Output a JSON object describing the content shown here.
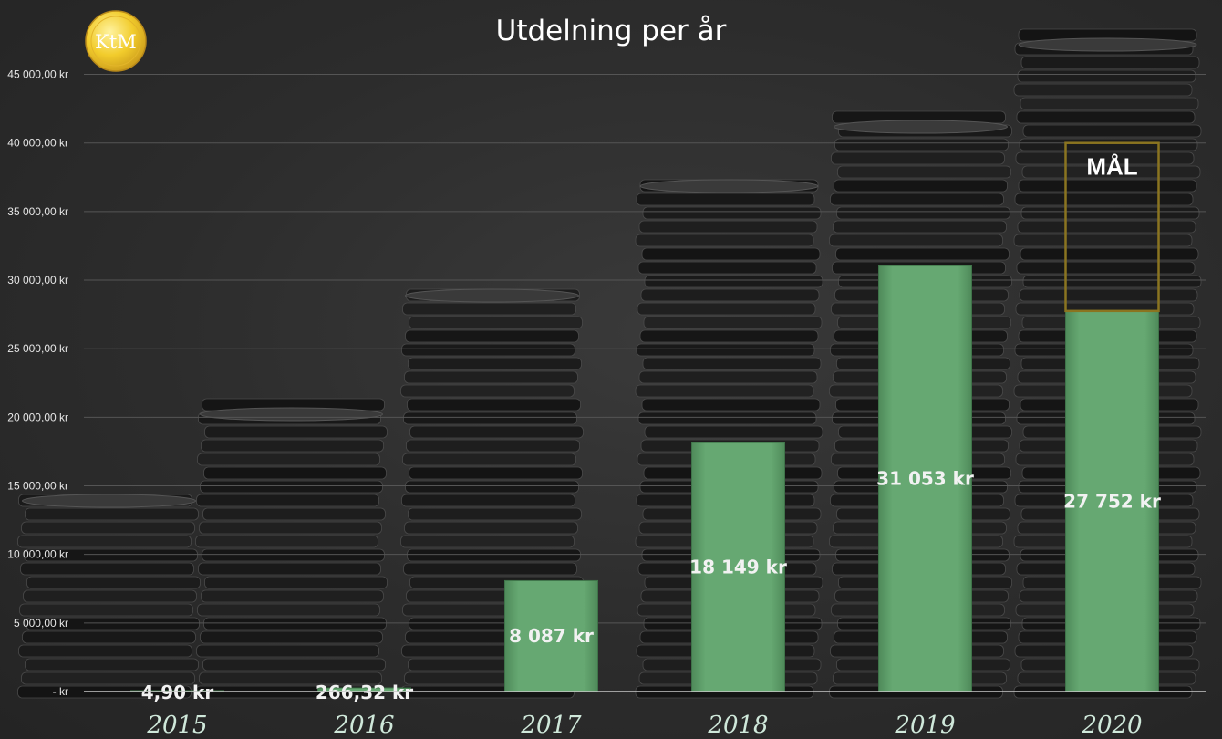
{
  "chart_data": {
    "type": "bar",
    "title": "Utdelning per år",
    "categories": [
      "2015",
      "2016",
      "2017",
      "2018",
      "2019",
      "2020"
    ],
    "values": [
      4.9,
      266.32,
      8087,
      18149,
      31053,
      27752
    ],
    "data_labels": [
      "4,90 kr",
      "266,32 kr",
      "8 087 kr",
      "18 149 kr",
      "31 053 kr",
      "27 752 kr"
    ],
    "yticks": [
      0,
      5000,
      10000,
      15000,
      20000,
      25000,
      30000,
      35000,
      40000,
      45000
    ],
    "ytick_labels": [
      "-   kr",
      "5 000,00 kr",
      "10 000,00 kr",
      "15 000,00 kr",
      "20 000,00 kr",
      "25 000,00 kr",
      "30 000,00 kr",
      "35 000,00 kr",
      "40 000,00 kr",
      "45 000,00 kr"
    ],
    "ylim": [
      0,
      46700
    ],
    "grid": true,
    "legend": "none",
    "goal": {
      "category": "2020",
      "value": 40000,
      "label": "MÅL"
    },
    "colors": {
      "bar": "#63a56f",
      "goal_border": "#8a7420",
      "grid": "#555555",
      "axis": "#c8c8c8"
    }
  },
  "logo": {
    "text": "KtM"
  }
}
